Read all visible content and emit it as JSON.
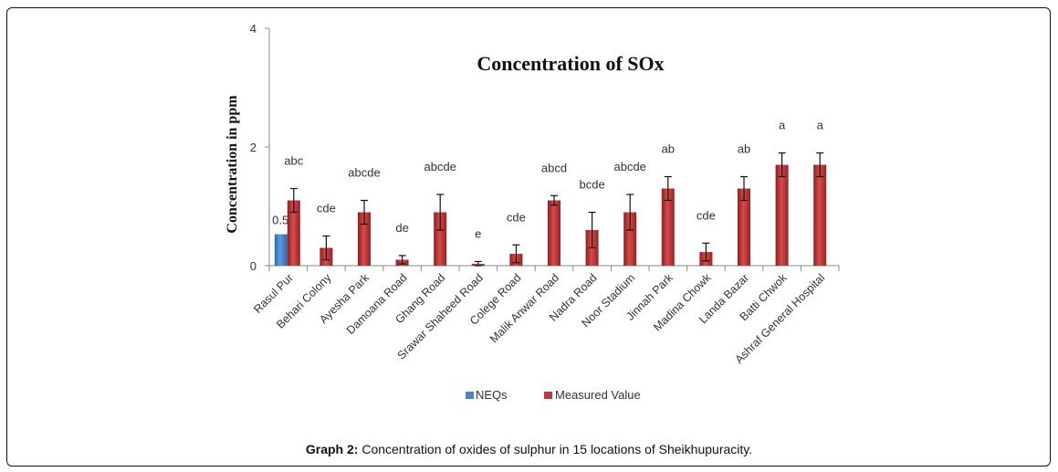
{
  "chart_data": {
    "type": "bar",
    "title": "Concentration  of SOx",
    "xlabel": "",
    "ylabel": "Concentration  in ppm",
    "ylim": [
      0,
      4
    ],
    "yticks": [
      "0",
      "2",
      "4"
    ],
    "grid": false,
    "legend_position": "bottom",
    "categories": [
      "Rasul Pur",
      "Behari Colony",
      "Ayesha Park",
      "Damoana Road",
      "Ghang Road",
      "Srawar Shaheed Road",
      "Colege Road",
      "Malik Anwar Road",
      "Nadra Road",
      "Noor Stadium",
      "Jinnah Park",
      "Madina Chowk",
      "Landa Bazar",
      "Batti Chwok",
      "Ashraf General Hospital"
    ],
    "series": [
      {
        "name": "NEQs",
        "color": "#4a86c8",
        "values": [
          0.53,
          null,
          null,
          null,
          null,
          null,
          null,
          null,
          null,
          null,
          null,
          null,
          null,
          null,
          null
        ],
        "data_labels": [
          "0.53"
        ]
      },
      {
        "name": "Measured Value",
        "color": "#c0393b",
        "values": [
          1.1,
          0.3,
          0.9,
          0.1,
          0.9,
          0.03,
          0.2,
          1.1,
          0.6,
          0.9,
          1.3,
          0.23,
          1.3,
          1.7,
          1.7
        ],
        "errors": [
          0.2,
          0.2,
          0.2,
          0.07,
          0.3,
          0.04,
          0.15,
          0.08,
          0.3,
          0.3,
          0.2,
          0.15,
          0.2,
          0.2,
          0.2
        ],
        "annotations": [
          "abc",
          "cde",
          "abcde",
          "de",
          "abcde",
          "e",
          "cde",
          "abcd",
          "bcde",
          "abcde",
          "ab",
          "cde",
          "ab",
          "a",
          "a"
        ]
      }
    ]
  },
  "caption": {
    "label": "Graph 2:",
    "text": " Concentration of oxides of sulphur in 15 locations of Sheikhupuracity."
  }
}
